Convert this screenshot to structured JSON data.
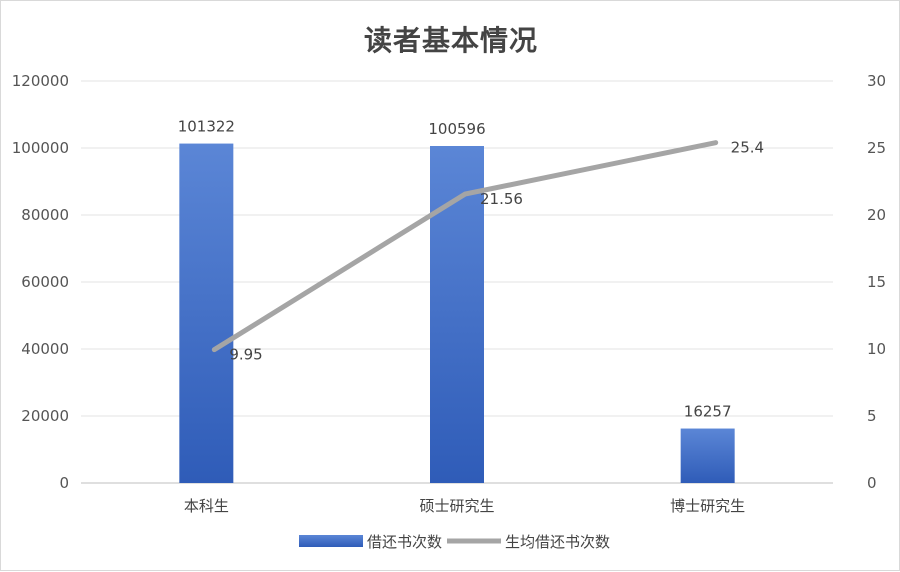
{
  "chart_data": {
    "type": "bar",
    "title": "读者基本情况",
    "categories": [
      "本科生",
      "硕士研究生",
      "博士研究生"
    ],
    "series": [
      {
        "name": "借还书次数",
        "type": "bar",
        "axis": "left",
        "values": [
          101322,
          100596,
          16257
        ],
        "color": "#4472c4"
      },
      {
        "name": "生均借还书次数",
        "type": "line",
        "axis": "right",
        "values": [
          9.95,
          21.56,
          25.4
        ],
        "color": "#a5a5a5"
      }
    ],
    "ylim_left": [
      0,
      120000
    ],
    "yticks_left": [
      "0",
      "20000",
      "40000",
      "60000",
      "80000",
      "100000",
      "120000"
    ],
    "ylim_right": [
      0,
      30
    ],
    "yticks_right": [
      "0",
      "5",
      "10",
      "15",
      "20",
      "25",
      "30"
    ],
    "grid": true,
    "legend": "bottom"
  }
}
